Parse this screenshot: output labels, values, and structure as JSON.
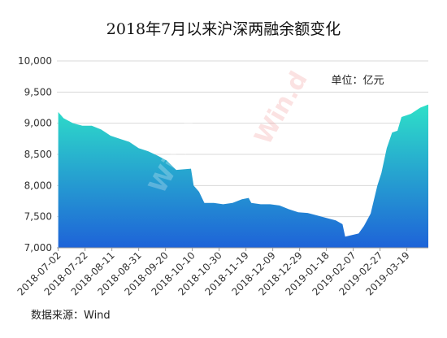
{
  "chart_data": {
    "type": "area",
    "title": "2018年7月以来沪深两融余额变化",
    "unit_note": "单位：亿元",
    "source": "数据来源：Wind",
    "watermark": "Win.d",
    "x": [
      "2018-07-02",
      "2018-07-06",
      "2018-07-13",
      "2018-07-20",
      "2018-07-27",
      "2018-08-03",
      "2018-08-10",
      "2018-08-17",
      "2018-08-24",
      "2018-08-31",
      "2018-09-07",
      "2018-09-14",
      "2018-09-21",
      "2018-09-28",
      "2018-10-09",
      "2018-10-11",
      "2018-10-15",
      "2018-10-19",
      "2018-10-26",
      "2018-11-02",
      "2018-11-09",
      "2018-11-16",
      "2018-11-21",
      "2018-11-23",
      "2018-11-30",
      "2018-12-07",
      "2018-12-14",
      "2018-12-21",
      "2018-12-28",
      "2019-01-04",
      "2019-01-11",
      "2019-01-18",
      "2019-01-25",
      "2019-01-30",
      "2019-02-01",
      "2019-02-11",
      "2019-02-15",
      "2019-02-20",
      "2019-02-25",
      "2019-02-28",
      "2019-03-04",
      "2019-03-08",
      "2019-03-12",
      "2019-03-15",
      "2019-03-22",
      "2019-03-29",
      "2019-04-04"
    ],
    "values": [
      9180,
      9080,
      9000,
      8960,
      8960,
      8900,
      8800,
      8750,
      8700,
      8600,
      8550,
      8480,
      8400,
      8250,
      8270,
      8000,
      7900,
      7720,
      7720,
      7700,
      7720,
      7780,
      7800,
      7720,
      7700,
      7700,
      7680,
      7620,
      7570,
      7560,
      7520,
      7480,
      7440,
      7380,
      7180,
      7230,
      7350,
      7550,
      8000,
      8200,
      8600,
      8850,
      8880,
      9100,
      9150,
      9250,
      9300
    ],
    "xticks": [
      "2018-07-02",
      "2018-07-22",
      "2018-08-11",
      "2018-08-31",
      "2018-09-20",
      "2018-10-10",
      "2018-10-30",
      "2018-11-19",
      "2018-12-09",
      "2018-12-29",
      "2019-01-18",
      "2019-02-07",
      "2019-02-27",
      "2019-03-19"
    ],
    "xlim": [
      "2018-07-01",
      "2019-04-04"
    ],
    "ylim": [
      7000,
      10000
    ],
    "yticks": [
      {
        "value": 7000,
        "label": "7,000"
      },
      {
        "value": 7500,
        "label": "7,500"
      },
      {
        "value": 8000,
        "label": "8,000"
      },
      {
        "value": 8500,
        "label": "8,500"
      },
      {
        "value": 9000,
        "label": "9,000"
      },
      {
        "value": 9500,
        "label": "9,500"
      },
      {
        "value": 10000,
        "label": "10,000"
      }
    ],
    "grid": true,
    "colors": [
      "#2ee0c8",
      "#1e63d8"
    ]
  }
}
